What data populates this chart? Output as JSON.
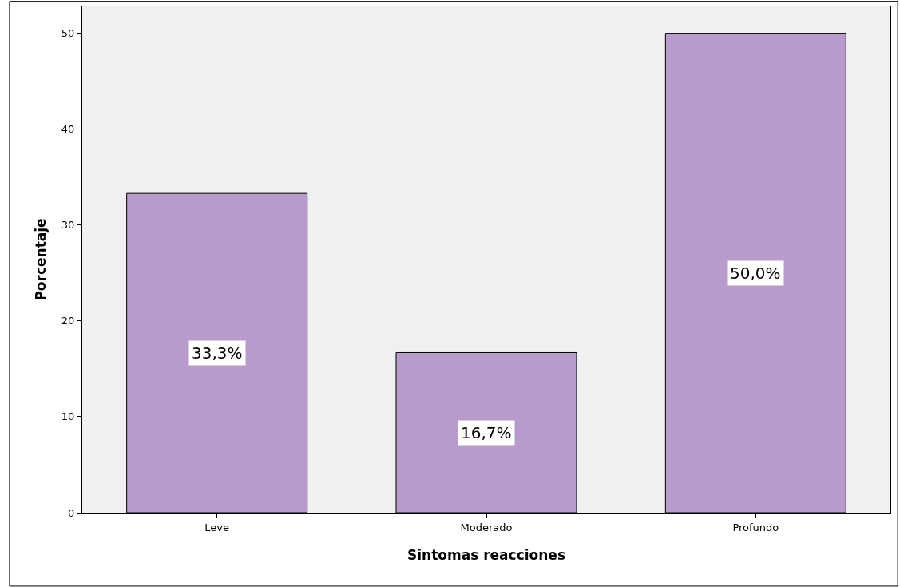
{
  "chart_data": {
    "type": "bar",
    "xlabel": "Sintomas reacciones",
    "ylabel": "Porcentaje",
    "categories": [
      "Leve",
      "Moderado",
      "Profundo"
    ],
    "values": [
      33.3,
      16.7,
      50.0
    ],
    "value_labels": [
      "33,3%",
      "16,7%",
      "50,0%"
    ],
    "color": "#b79bcb",
    "ylim": [
      0,
      52.8
    ],
    "yticks": [
      0,
      10,
      20,
      30,
      40,
      50
    ],
    "grid": false
  }
}
